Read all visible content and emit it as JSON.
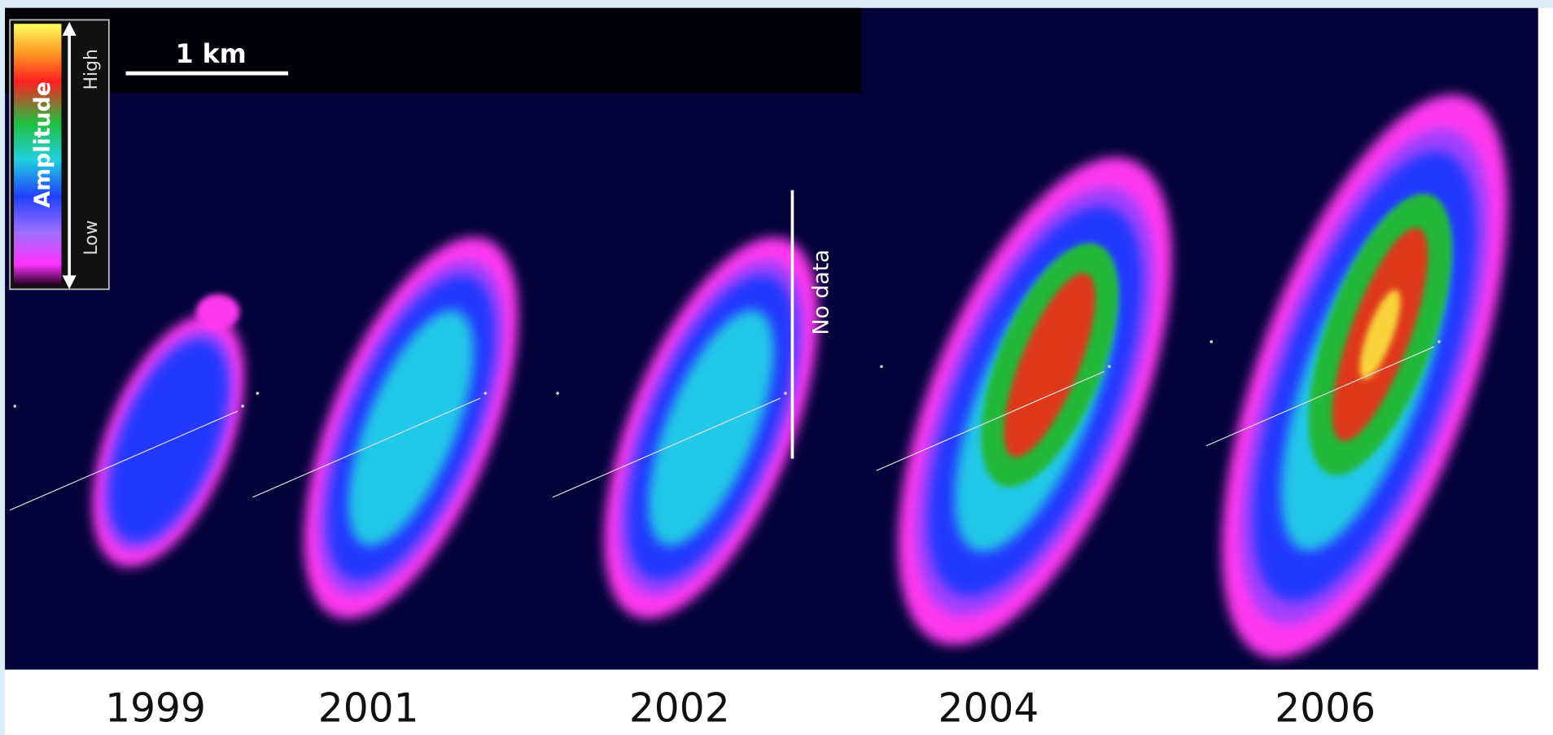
{
  "legend": {
    "title": "Amplitude",
    "high": "High",
    "low": "Low"
  },
  "scale_bar": {
    "label": "1 km"
  },
  "annotation": "No data",
  "panels": [
    {
      "year": "1999"
    },
    {
      "year": "2001"
    },
    {
      "year": "2002"
    },
    {
      "year": "2004"
    },
    {
      "year": "2006"
    }
  ]
}
